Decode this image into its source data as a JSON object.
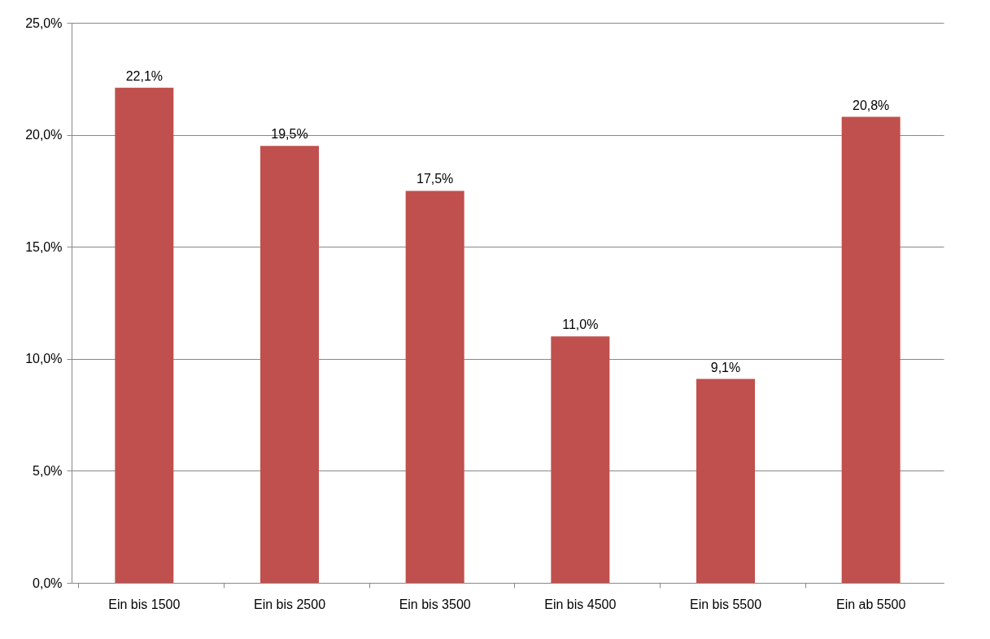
{
  "chart_data": {
    "type": "bar",
    "categories": [
      "Ein bis 1500",
      "Ein bis 2500",
      "Ein bis 3500",
      "Ein bis 4500",
      "Ein bis 5500",
      "Ein ab 5500"
    ],
    "values": [
      22.1,
      19.5,
      17.5,
      11.0,
      9.1,
      20.8
    ],
    "value_labels": [
      "22,1%",
      "19,5%",
      "17,5%",
      "11,0%",
      "9,1%",
      "20,8%"
    ],
    "color": "#c0504d",
    "ylim": [
      0,
      25
    ],
    "yticks": [
      {
        "value": 0,
        "label": "0,0%"
      },
      {
        "value": 5,
        "label": "5,0%"
      },
      {
        "value": 10,
        "label": "10,0%"
      },
      {
        "value": 15,
        "label": "15,0%"
      },
      {
        "value": 20,
        "label": "20,0%"
      },
      {
        "value": 25,
        "label": "25,0%"
      }
    ],
    "grid": "y"
  }
}
